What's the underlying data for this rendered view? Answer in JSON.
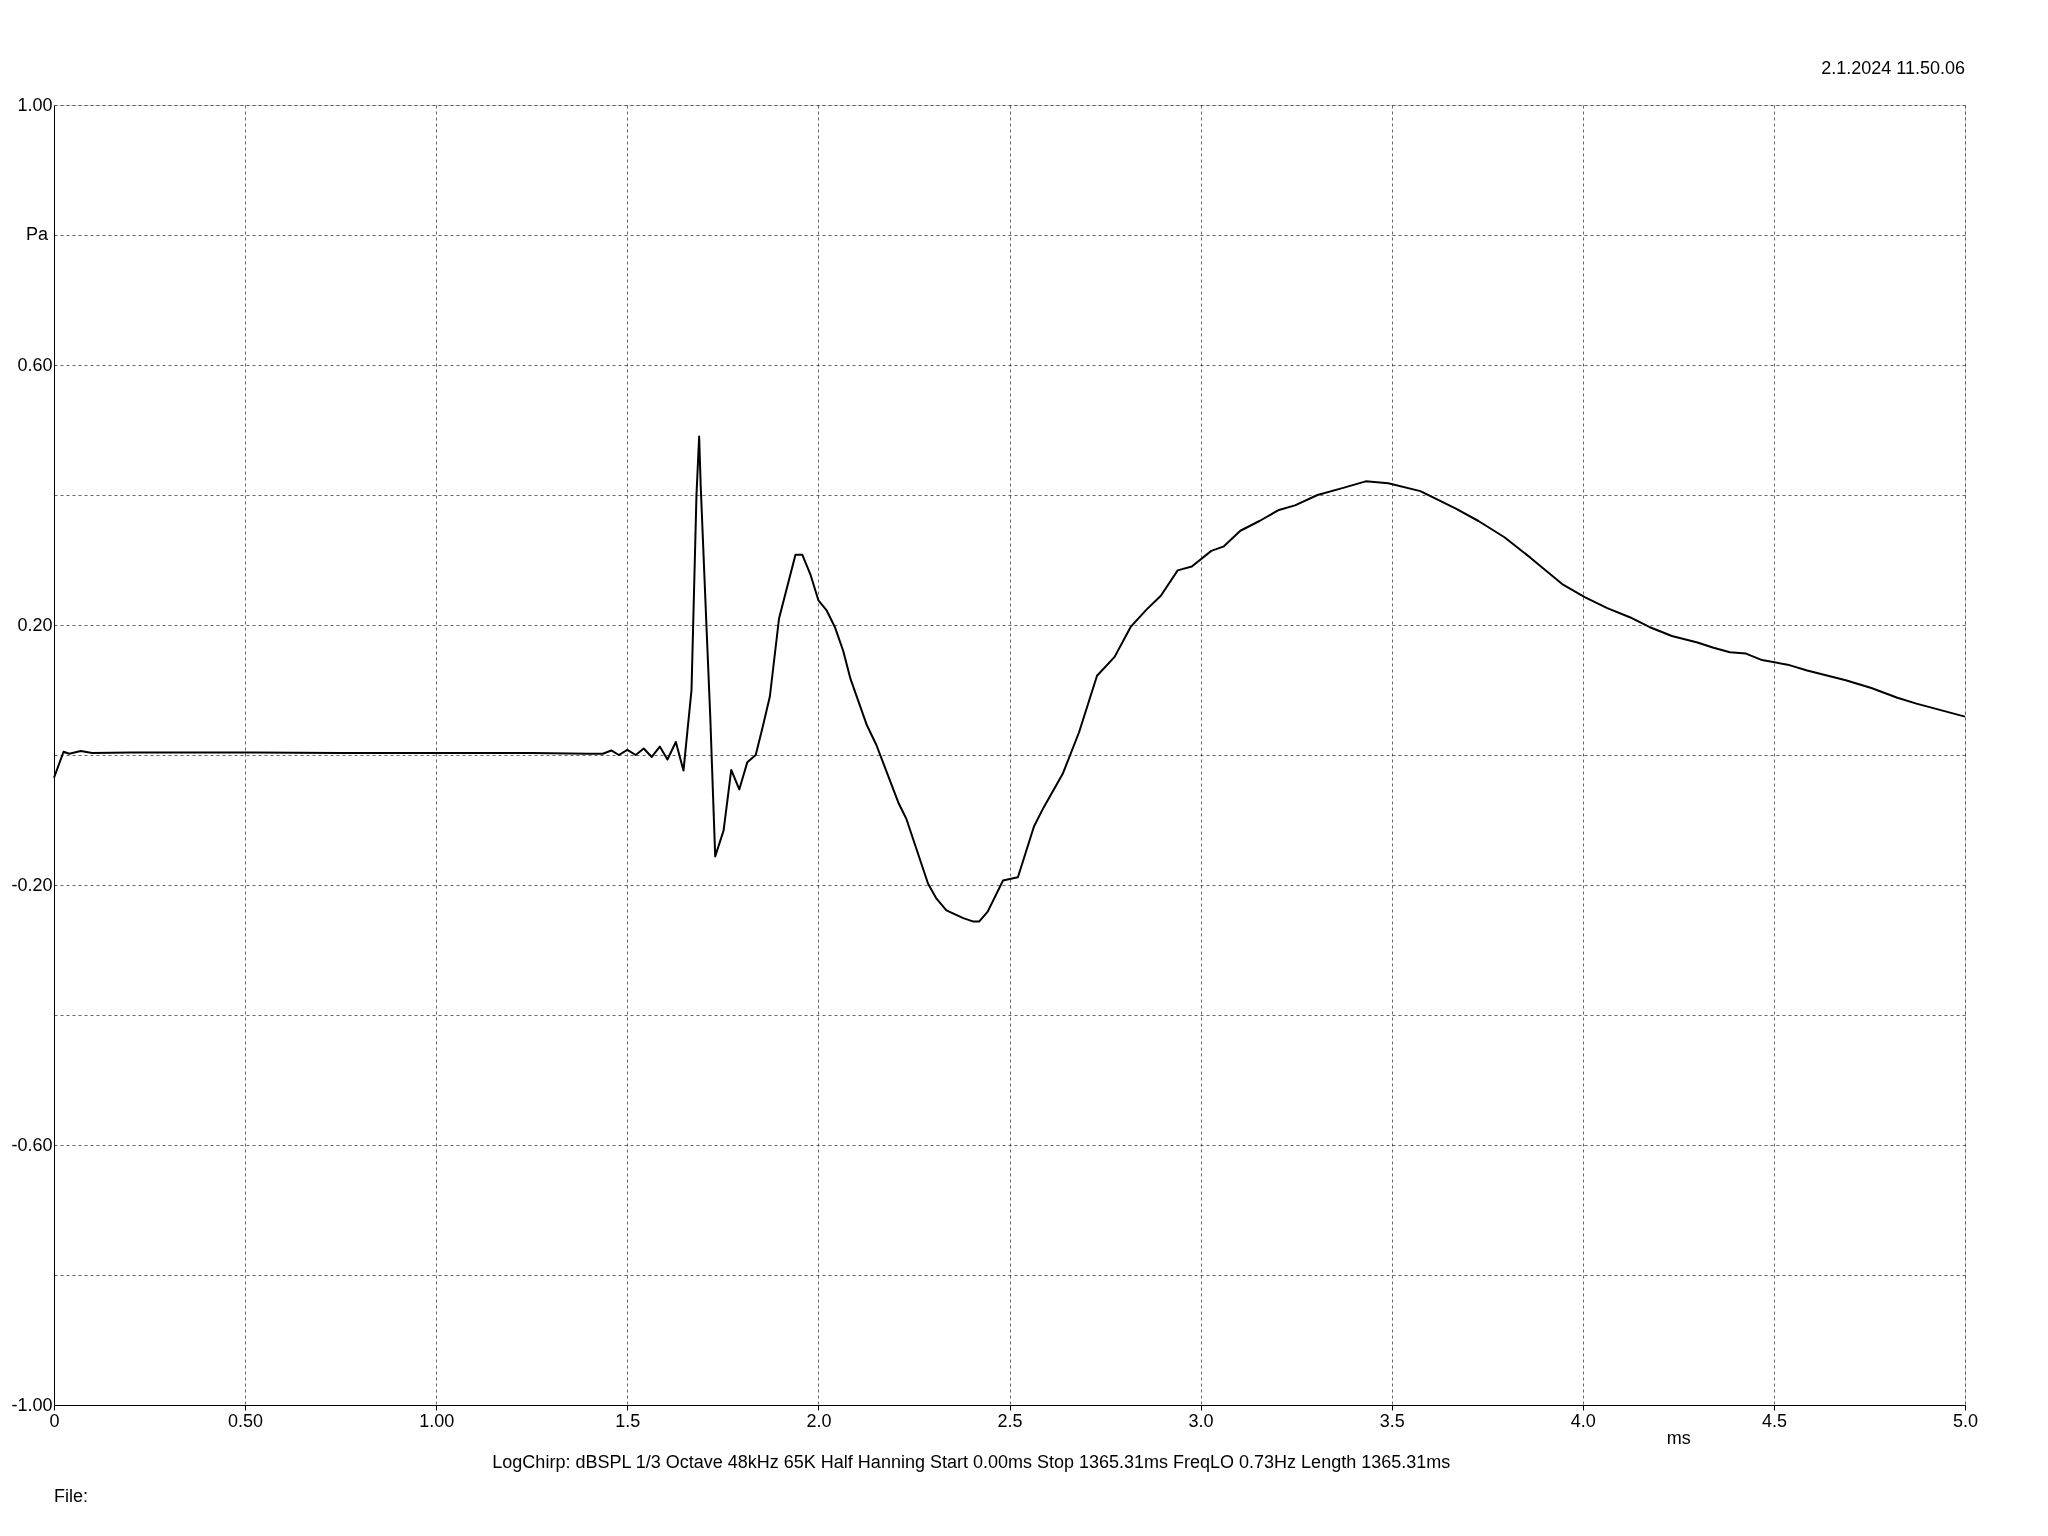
{
  "chart_data": {
    "type": "line",
    "xlabel": "ms",
    "ylabel": "Pa",
    "annotations": [
      "2.1.2024 11.50.06",
      "LogChirp: dBSPL 1/3 Octave 48kHz 65K Half Hanning Start 0.00ms Stop 1365.31ms FreqLO 0.73Hz Length 1365.31ms",
      "File:"
    ],
    "xlim": [
      0,
      5
    ],
    "ylim": [
      -1,
      1
    ],
    "xticks": [
      0,
      {
        "value": 0.5,
        "label": "0.50"
      },
      {
        "value": 1,
        "label": "1.00"
      },
      1.5,
      {
        "value": 2,
        "label": "2.0"
      },
      2.5,
      {
        "value": 3,
        "label": "3.0"
      },
      3.5,
      {
        "value": 4,
        "label": "4.0"
      },
      4.5,
      {
        "value": 5,
        "label": "5.0"
      }
    ],
    "yticks": [
      {
        "value": -1,
        "label": "-1.00"
      },
      {
        "value": -0.8,
        "label": null
      },
      {
        "value": -0.6,
        "label": "-0.60"
      },
      {
        "value": -0.4,
        "label": null
      },
      {
        "value": -0.2,
        "label": "-0.20"
      },
      {
        "value": 0,
        "label": null
      },
      {
        "value": 0.2,
        "label": "0.20"
      },
      {
        "value": 0.4,
        "label": null
      },
      {
        "value": 0.6,
        "label": "0.60"
      },
      {
        "value": 0.8,
        "label": null
      },
      {
        "value": 1,
        "label": "1.00"
      }
    ],
    "grid": true,
    "legend": false,
    "marker": "none",
    "line_style": "solid",
    "series": [
      {
        "color": "#000000",
        "x": [
          0,
          0.025,
          0.04,
          0.07,
          0.1,
          0.2,
          0.5,
          0.75,
          1.0,
          1.25,
          1.4,
          1.436,
          1.458,
          1.478,
          1.5,
          1.522,
          1.543,
          1.564,
          1.585,
          1.605,
          1.627,
          1.647,
          1.668,
          1.681,
          1.688,
          1.692,
          1.707,
          1.717,
          1.73,
          1.752,
          1.772,
          1.793,
          1.814,
          1.836,
          1.855,
          1.873,
          1.897,
          1.94,
          1.958,
          1.979,
          2.0,
          2.021,
          2.043,
          2.065,
          2.084,
          2.126,
          2.152,
          2.209,
          2.23,
          2.287,
          2.309,
          2.335,
          2.379,
          2.404,
          2.421,
          2.443,
          2.483,
          2.522,
          2.564,
          2.589,
          2.64,
          2.682,
          2.729,
          2.775,
          2.817,
          2.859,
          2.896,
          2.94,
          2.977,
          3.028,
          3.061,
          3.104,
          3.154,
          3.205,
          3.247,
          3.306,
          3.373,
          3.432,
          3.491,
          3.575,
          3.668,
          3.727,
          3.795,
          3.862,
          3.946,
          4.005,
          4.064,
          4.123,
          4.174,
          4.233,
          4.3,
          4.342,
          4.385,
          4.427,
          4.469,
          4.536,
          4.587,
          4.688,
          4.755,
          4.823,
          4.873,
          5.0
        ],
        "values": [
          -0.035,
          0.005,
          0.002,
          0.006,
          0.003,
          0.004,
          0.004,
          0.003,
          0.003,
          0.003,
          0.002,
          0.002,
          0.007,
          0,
          0.008,
          0,
          0.01,
          -0.003,
          0.013,
          -0.007,
          0.02,
          -0.024,
          0.1,
          0.4,
          0.49,
          0.415,
          0.2,
          0.06,
          -0.156,
          -0.116,
          -0.023,
          -0.053,
          -0.011,
          0,
          0.045,
          0.09,
          0.21,
          0.308,
          0.308,
          0.278,
          0.238,
          0.223,
          0.197,
          0.16,
          0.117,
          0.047,
          0.015,
          -0.073,
          -0.098,
          -0.198,
          -0.221,
          -0.239,
          -0.251,
          -0.256,
          -0.256,
          -0.241,
          -0.193,
          -0.188,
          -0.11,
          -0.081,
          -0.028,
          0.035,
          0.122,
          0.151,
          0.197,
          0.224,
          0.245,
          0.284,
          0.29,
          0.314,
          0.321,
          0.345,
          0.36,
          0.377,
          0.384,
          0.4,
          0.411,
          0.421,
          0.418,
          0.406,
          0.379,
          0.36,
          0.335,
          0.304,
          0.263,
          0.243,
          0.226,
          0.212,
          0.197,
          0.183,
          0.173,
          0.165,
          0.158,
          0.156,
          0.146,
          0.139,
          0.13,
          0.115,
          0.103,
          0.088,
          0.079,
          0.059
        ]
      }
    ]
  }
}
